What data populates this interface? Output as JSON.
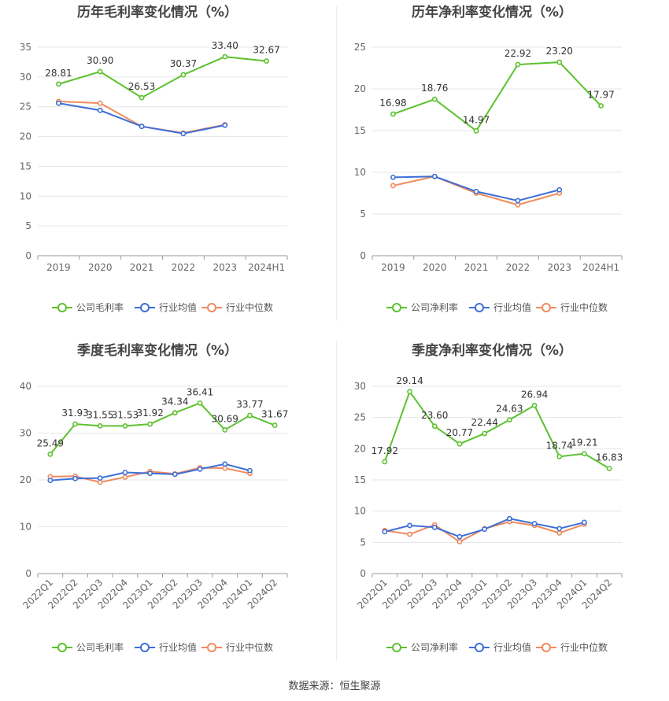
{
  "source_label": "数据来源：恒生聚源",
  "colors": {
    "company": "#5cc12e",
    "avg": "#3d6fd8",
    "median": "#f08a5d",
    "grid": "#e6e6e6",
    "axis": "#999999",
    "text": "#666666",
    "title": "#444444"
  },
  "chart_data": [
    {
      "type": "line",
      "title": "历年毛利率变化情况（%）",
      "categories": [
        "2019",
        "2020",
        "2021",
        "2022",
        "2023",
        "2024H1"
      ],
      "ylim": [
        0,
        35
      ],
      "yticks": [
        0,
        5,
        10,
        15,
        20,
        25,
        30,
        35
      ],
      "grid": true,
      "legend": "bottom",
      "series": [
        {
          "name": "公司毛利率",
          "role": "company",
          "values": [
            28.81,
            30.9,
            26.53,
            30.37,
            33.4,
            32.67
          ],
          "labels": [
            "28.81",
            "30.90",
            "26.53",
            "30.37",
            "33.40",
            "32.67"
          ]
        },
        {
          "name": "行业均值",
          "role": "avg",
          "values": [
            25.6,
            24.4,
            21.7,
            20.5,
            21.9,
            null
          ]
        },
        {
          "name": "行业中位数",
          "role": "median",
          "values": [
            25.9,
            25.6,
            21.7,
            20.6,
            22.0,
            null
          ]
        }
      ]
    },
    {
      "type": "line",
      "title": "历年净利率变化情况（%）",
      "categories": [
        "2019",
        "2020",
        "2021",
        "2022",
        "2023",
        "2024H1"
      ],
      "ylim": [
        0,
        25
      ],
      "yticks": [
        0,
        5,
        10,
        15,
        20,
        25
      ],
      "grid": true,
      "legend": "bottom",
      "series": [
        {
          "name": "公司净利率",
          "role": "company",
          "values": [
            16.98,
            18.76,
            14.97,
            22.92,
            23.2,
            17.97
          ],
          "labels": [
            "16.98",
            "18.76",
            "14.97",
            "22.92",
            "23.20",
            "17.97"
          ]
        },
        {
          "name": "行业均值",
          "role": "avg",
          "values": [
            9.4,
            9.5,
            7.7,
            6.6,
            7.9,
            null
          ]
        },
        {
          "name": "行业中位数",
          "role": "median",
          "values": [
            8.4,
            9.5,
            7.5,
            6.1,
            7.5,
            null
          ]
        }
      ]
    },
    {
      "type": "line",
      "title": "季度毛利率变化情况（%）",
      "categories": [
        "2022Q1",
        "2022Q2",
        "2022Q3",
        "2022Q4",
        "2023Q1",
        "2023Q2",
        "2023Q3",
        "2023Q4",
        "2024Q1",
        "2024Q2"
      ],
      "ylim": [
        0,
        40
      ],
      "yticks": [
        0,
        10,
        20,
        30,
        40
      ],
      "grid": true,
      "legend": "bottom",
      "series": [
        {
          "name": "公司毛利率",
          "role": "company",
          "values": [
            25.49,
            31.93,
            31.55,
            31.53,
            31.92,
            34.34,
            36.41,
            30.69,
            33.77,
            31.67
          ],
          "labels": [
            "25.49",
            "31.93",
            "31.55",
            "31.53",
            "31.92",
            "34.34",
            "36.41",
            "30.69",
            "33.77",
            "31.67"
          ]
        },
        {
          "name": "行业均值",
          "role": "avg",
          "values": [
            19.9,
            20.3,
            20.4,
            21.6,
            21.4,
            21.2,
            22.3,
            23.4,
            22.0,
            null
          ]
        },
        {
          "name": "行业中位数",
          "role": "median",
          "values": [
            20.7,
            20.8,
            19.5,
            20.6,
            21.8,
            21.3,
            22.6,
            22.5,
            21.4,
            null
          ]
        }
      ]
    },
    {
      "type": "line",
      "title": "季度净利率变化情况（%）",
      "categories": [
        "2022Q1",
        "2022Q2",
        "2022Q3",
        "2022Q4",
        "2023Q1",
        "2023Q2",
        "2023Q3",
        "2023Q4",
        "2024Q1",
        "2024Q2"
      ],
      "ylim": [
        0,
        30
      ],
      "yticks": [
        0,
        5,
        10,
        15,
        20,
        25,
        30
      ],
      "grid": true,
      "legend": "bottom",
      "series": [
        {
          "name": "公司净利率",
          "role": "company",
          "values": [
            17.92,
            29.14,
            23.6,
            20.77,
            22.44,
            24.63,
            26.94,
            18.74,
            19.21,
            16.83
          ],
          "labels": [
            "17.92",
            "29.14",
            "23.60",
            "20.77",
            "22.44",
            "24.63",
            "26.94",
            "18.74",
            "19.21",
            "16.83"
          ]
        },
        {
          "name": "行业均值",
          "role": "avg",
          "values": [
            6.7,
            7.7,
            7.4,
            5.9,
            7.1,
            8.8,
            8.0,
            7.2,
            8.2,
            null
          ]
        },
        {
          "name": "行业中位数",
          "role": "median",
          "values": [
            6.9,
            6.3,
            7.8,
            5.1,
            7.2,
            8.3,
            7.7,
            6.5,
            7.9,
            null
          ]
        }
      ]
    }
  ]
}
